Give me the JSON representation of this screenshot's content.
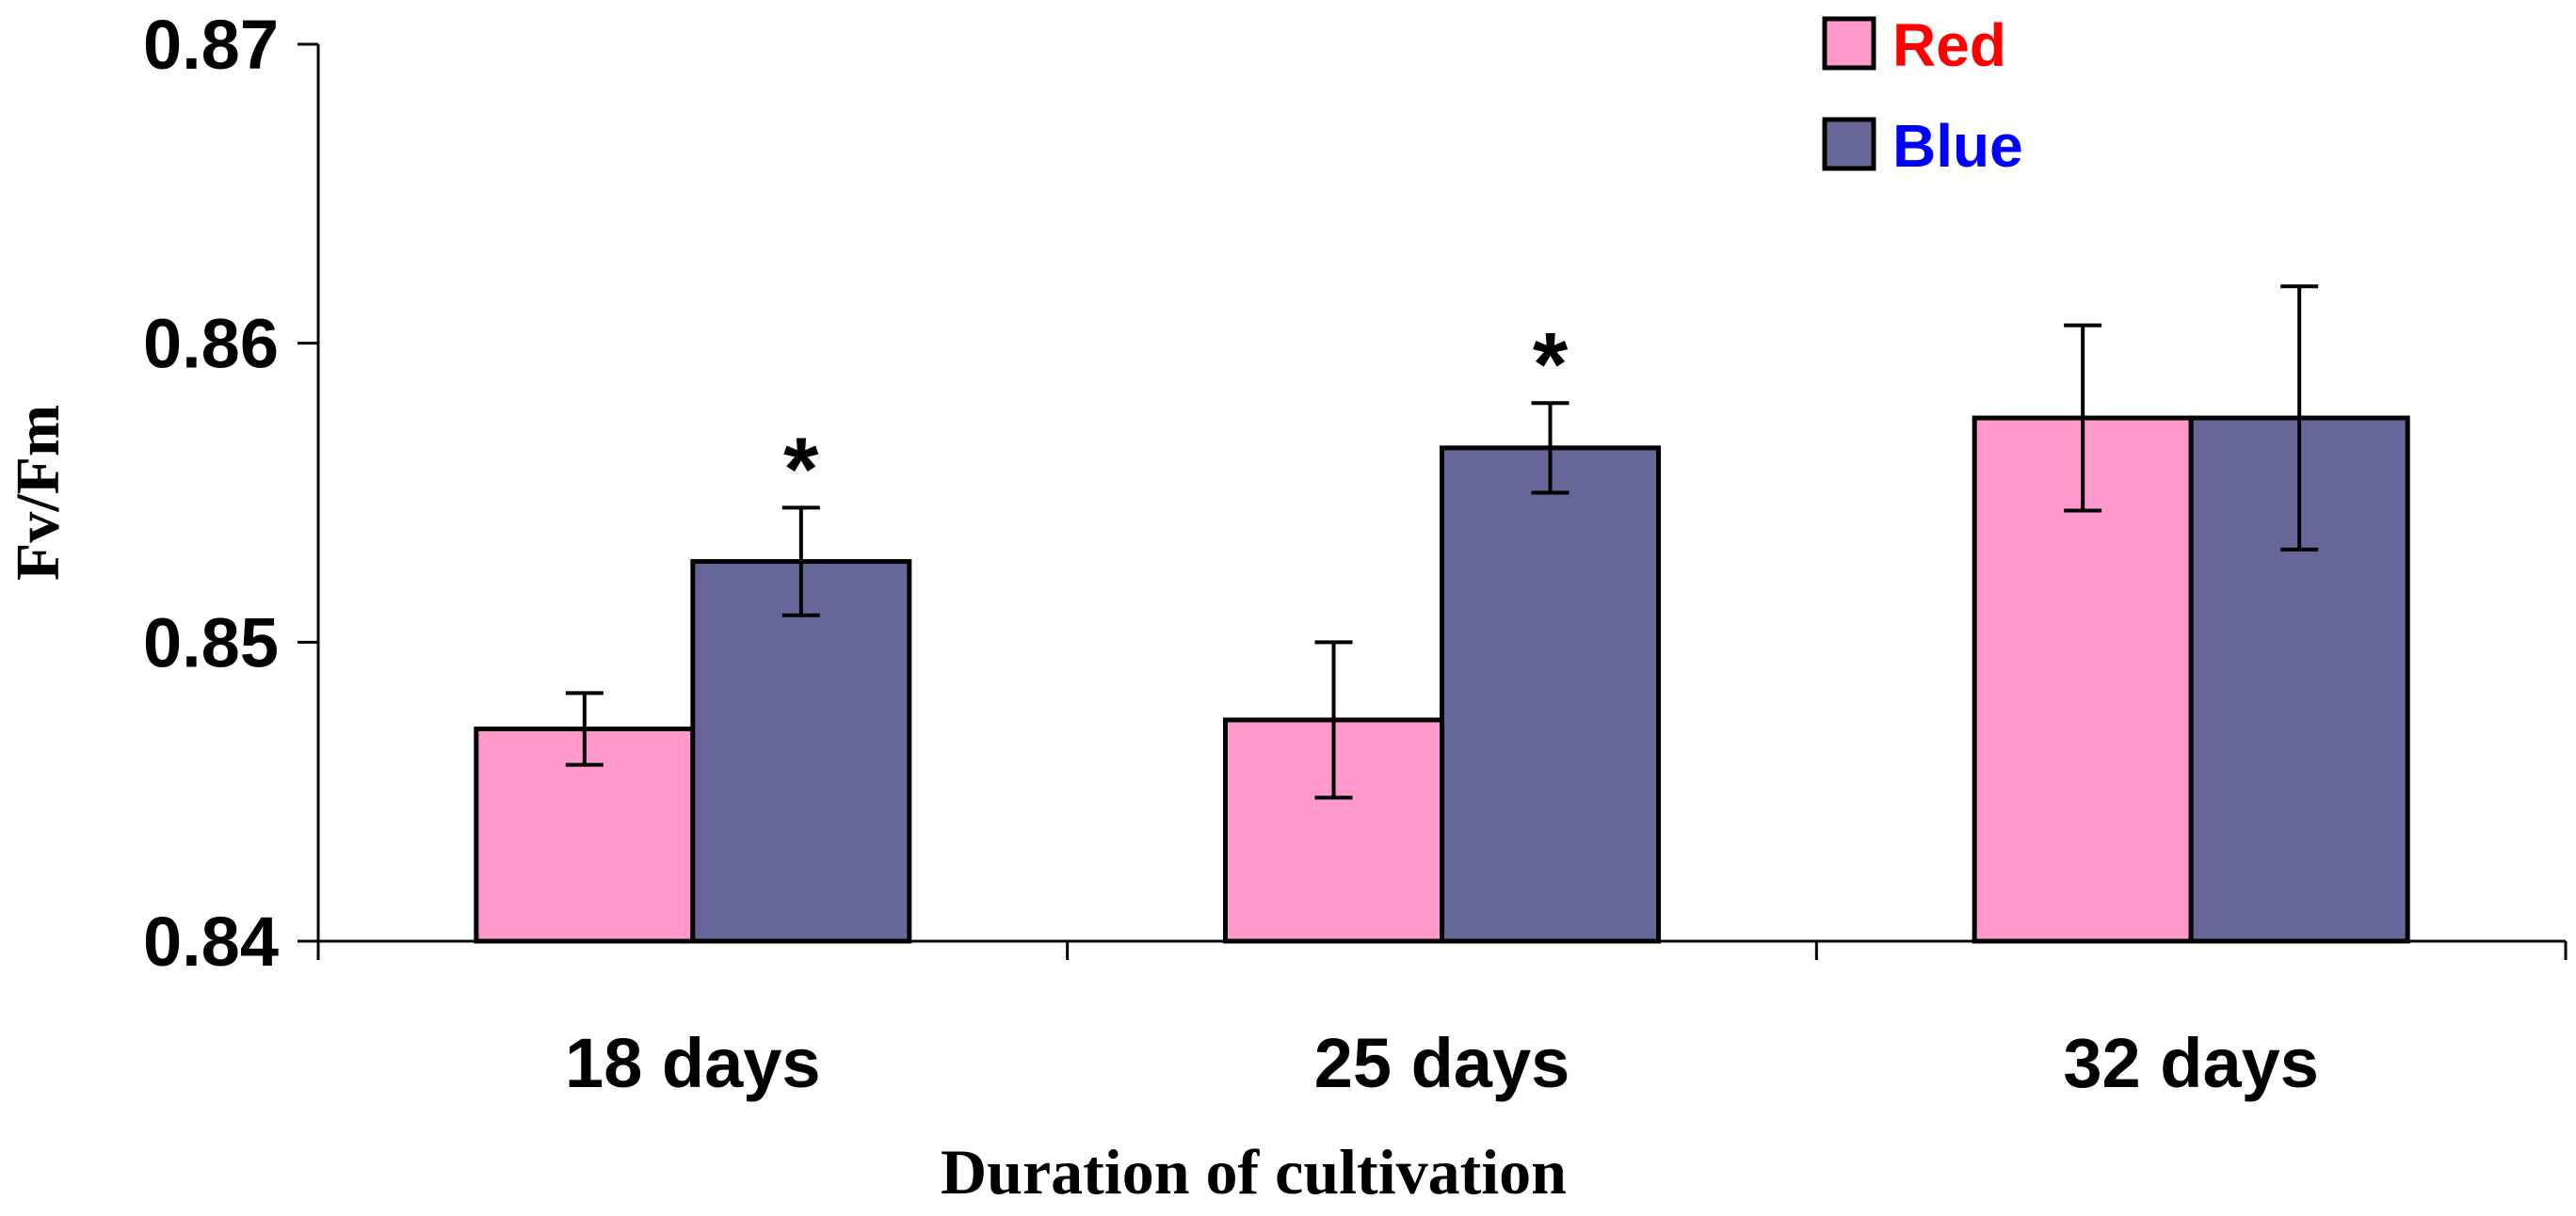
{
  "chart_data": {
    "type": "bar",
    "title": "",
    "xlabel": "Duration of cultivation",
    "ylabel": "Fv/Fm",
    "ylim": [
      0.84,
      0.87
    ],
    "yticks": [
      "0.84",
      "0.85",
      "0.86",
      "0.87"
    ],
    "ytick_values": [
      0.84,
      0.85,
      0.86,
      0.87
    ],
    "categories": [
      "18 days",
      "25 days",
      "32 days"
    ],
    "series": [
      {
        "name": "Red",
        "color": "#ff99cc",
        "label_color": "#ff0000",
        "values": [
          0.8471,
          0.8474,
          0.8575
        ],
        "errors": [
          0.0012,
          0.0026,
          0.0031
        ]
      },
      {
        "name": "Blue",
        "color": "#666699",
        "label_color": "#0000ff",
        "values": [
          0.8527,
          0.8565,
          0.8575
        ],
        "errors": [
          0.0018,
          0.0015,
          0.0044
        ]
      }
    ],
    "significance": [
      {
        "category": "18 days",
        "series": "Blue",
        "mark": "*"
      },
      {
        "category": "25 days",
        "series": "Blue",
        "mark": "*"
      }
    ],
    "legend_position": "top-right",
    "grid": false
  }
}
